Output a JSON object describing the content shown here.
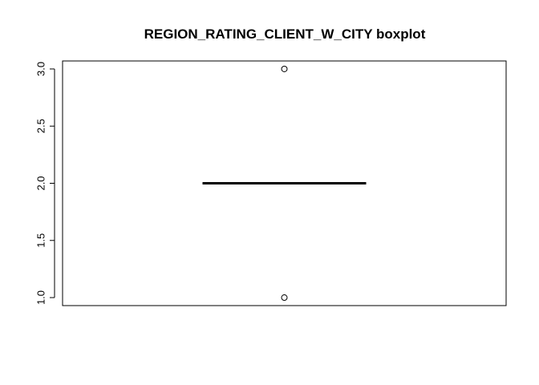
{
  "chart_data": {
    "type": "boxplot",
    "title": "REGION_RATING_CLIENT_W_CITY boxplot",
    "xlabel": "",
    "ylabel": "",
    "ylim": [
      0.93,
      3.07
    ],
    "yticks": [
      "1.0",
      "1.5",
      "2.0",
      "2.5",
      "3.0"
    ],
    "ytick_values": [
      1.0,
      1.5,
      2.0,
      2.5,
      3.0
    ],
    "box": {
      "min": 2,
      "q1": 2,
      "median": 2,
      "q3": 2,
      "max": 2
    },
    "outliers": [
      1,
      3
    ],
    "grid": false,
    "legend": "none"
  }
}
